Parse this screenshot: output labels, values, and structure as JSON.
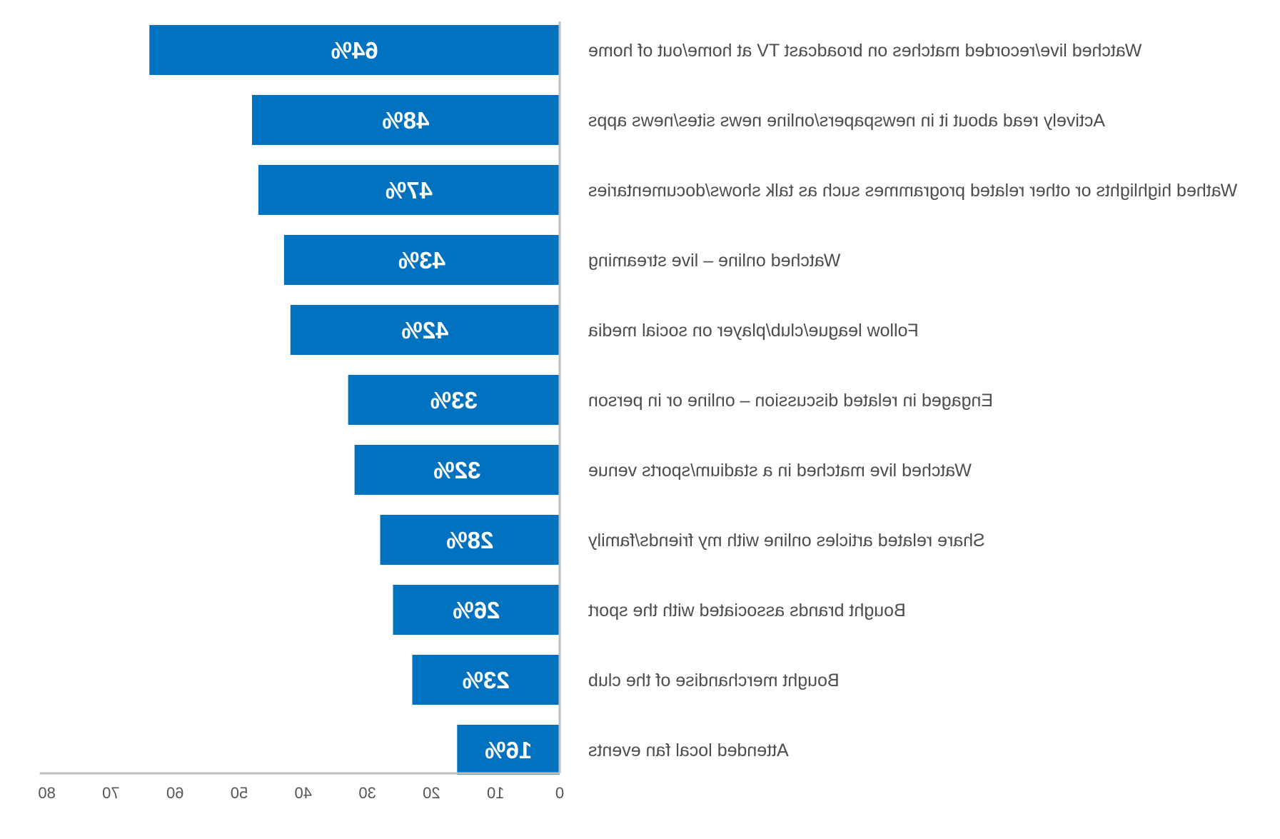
{
  "chart_data": {
    "type": "bar",
    "orientation": "horizontal",
    "mirrored": true,
    "categories": [
      "Watched live/recorded matches on broadcast TV at home/out of home",
      "Actively read about it in newspapers/online news sites/news apps",
      "Wathed highlights or other related programmes such as talk shows/documentaries",
      "Watched online – live streaming",
      "Follow league/club/player on social media",
      "Engaged in related discussion – online or in person",
      "Watched live matched in a stadium/sports venue",
      "Share related articles online with my friends/family",
      "Bought brands associated with the sport",
      "Bought merchandise of the club",
      "Attended local fan events"
    ],
    "values": [
      64,
      48,
      47,
      43,
      42,
      33,
      32,
      28,
      26,
      23,
      16
    ],
    "value_labels": [
      "64%",
      "48%",
      "47%",
      "43%",
      "42%",
      "33%",
      "32%",
      "28%",
      "26%",
      "23%",
      "16%"
    ],
    "xlim": [
      0,
      80
    ],
    "xticks": [
      0,
      10,
      20,
      30,
      40,
      50,
      60,
      70,
      80
    ],
    "grid": false,
    "bar_color": "#0072c0",
    "axis_color": "#bfbfbf"
  }
}
